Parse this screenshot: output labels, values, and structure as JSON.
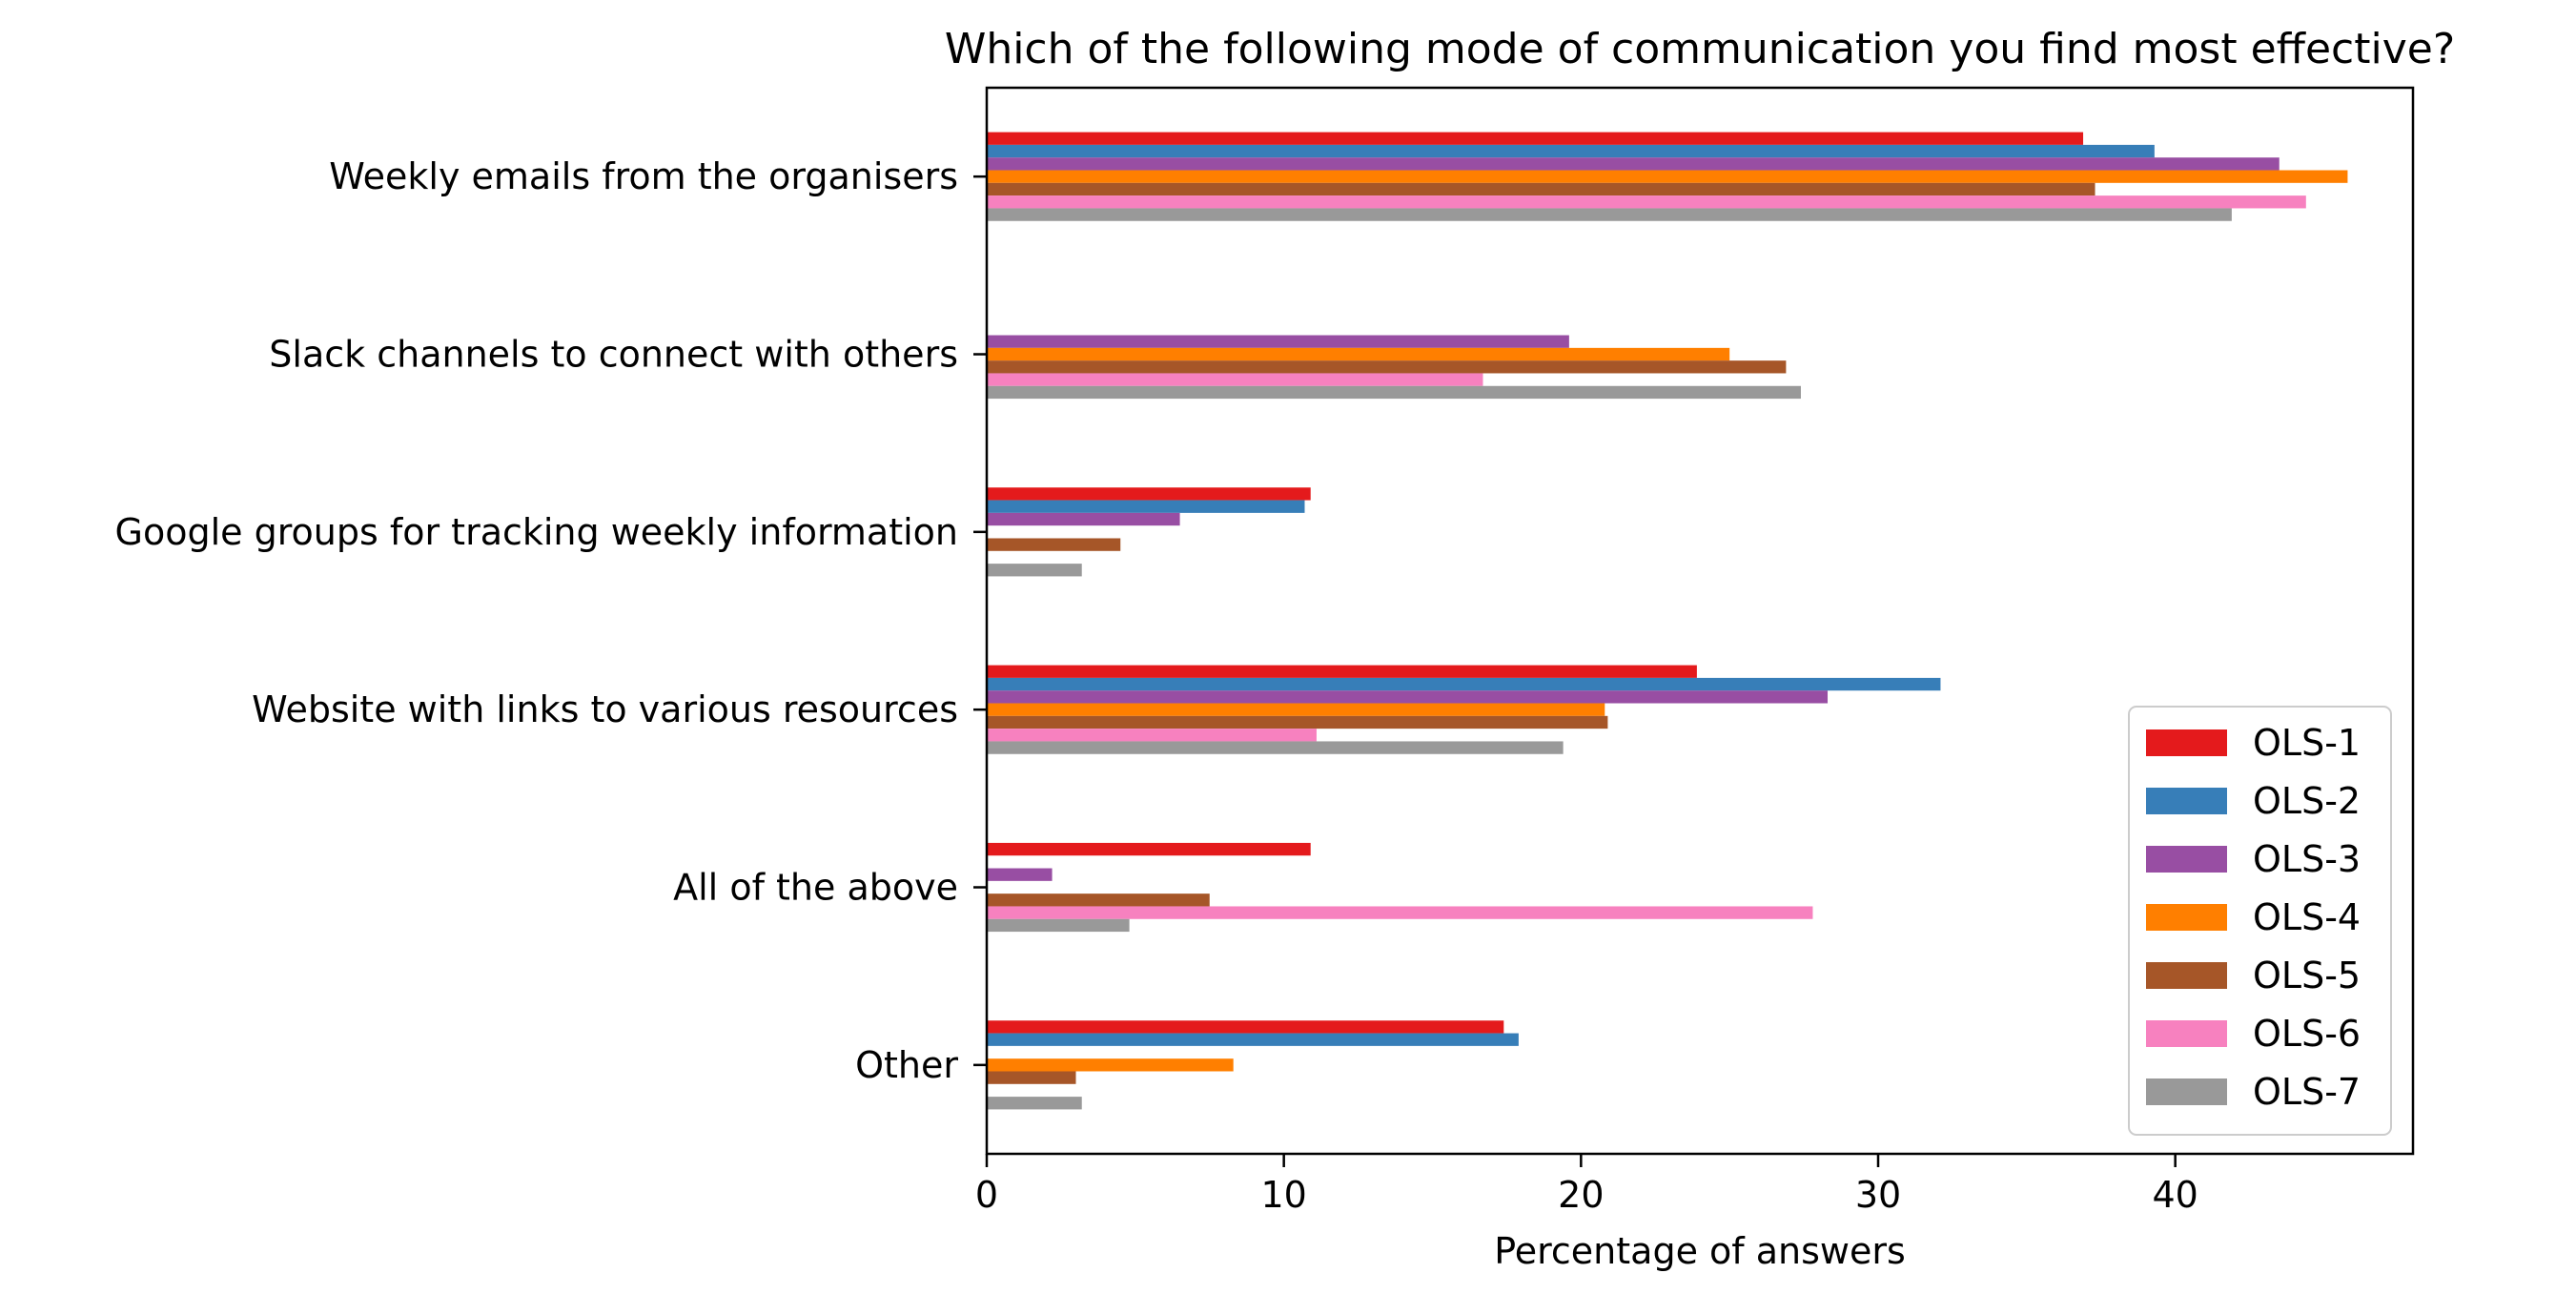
{
  "chart_data": {
    "type": "bar",
    "orientation": "horizontal",
    "title": "Which of the following mode of communication you find most effective?",
    "xlabel": "Percentage of answers",
    "ylabel": "",
    "xlim": [
      0,
      48
    ],
    "xticks": [
      0,
      10,
      20,
      30,
      40
    ],
    "grid": false,
    "legend_position": "lower-right",
    "categories": [
      "Weekly emails from the organisers",
      "Slack channels to connect with others",
      "Google groups for tracking weekly information",
      "Website with links to various resources",
      "All of the above",
      "Other"
    ],
    "series": [
      {
        "name": "OLS-1",
        "color": "#e41a1c",
        "values": [
          36.9,
          0,
          10.9,
          23.9,
          10.9,
          17.4
        ]
      },
      {
        "name": "OLS-2",
        "color": "#377eb8",
        "values": [
          39.3,
          0,
          10.7,
          32.1,
          0,
          17.9
        ]
      },
      {
        "name": "OLS-3",
        "color": "#984ea3",
        "values": [
          43.5,
          19.6,
          6.5,
          28.3,
          2.2,
          0
        ]
      },
      {
        "name": "OLS-4",
        "color": "#ff7f00",
        "values": [
          45.8,
          25.0,
          0,
          20.8,
          0,
          8.3
        ]
      },
      {
        "name": "OLS-5",
        "color": "#a65628",
        "values": [
          37.3,
          26.9,
          4.5,
          20.9,
          7.5,
          3.0
        ]
      },
      {
        "name": "OLS-6",
        "color": "#f781bf",
        "values": [
          44.4,
          16.7,
          0,
          11.1,
          27.8,
          0
        ]
      },
      {
        "name": "OLS-7",
        "color": "#999999",
        "values": [
          41.9,
          27.4,
          3.2,
          19.4,
          4.8,
          3.2
        ]
      }
    ]
  }
}
